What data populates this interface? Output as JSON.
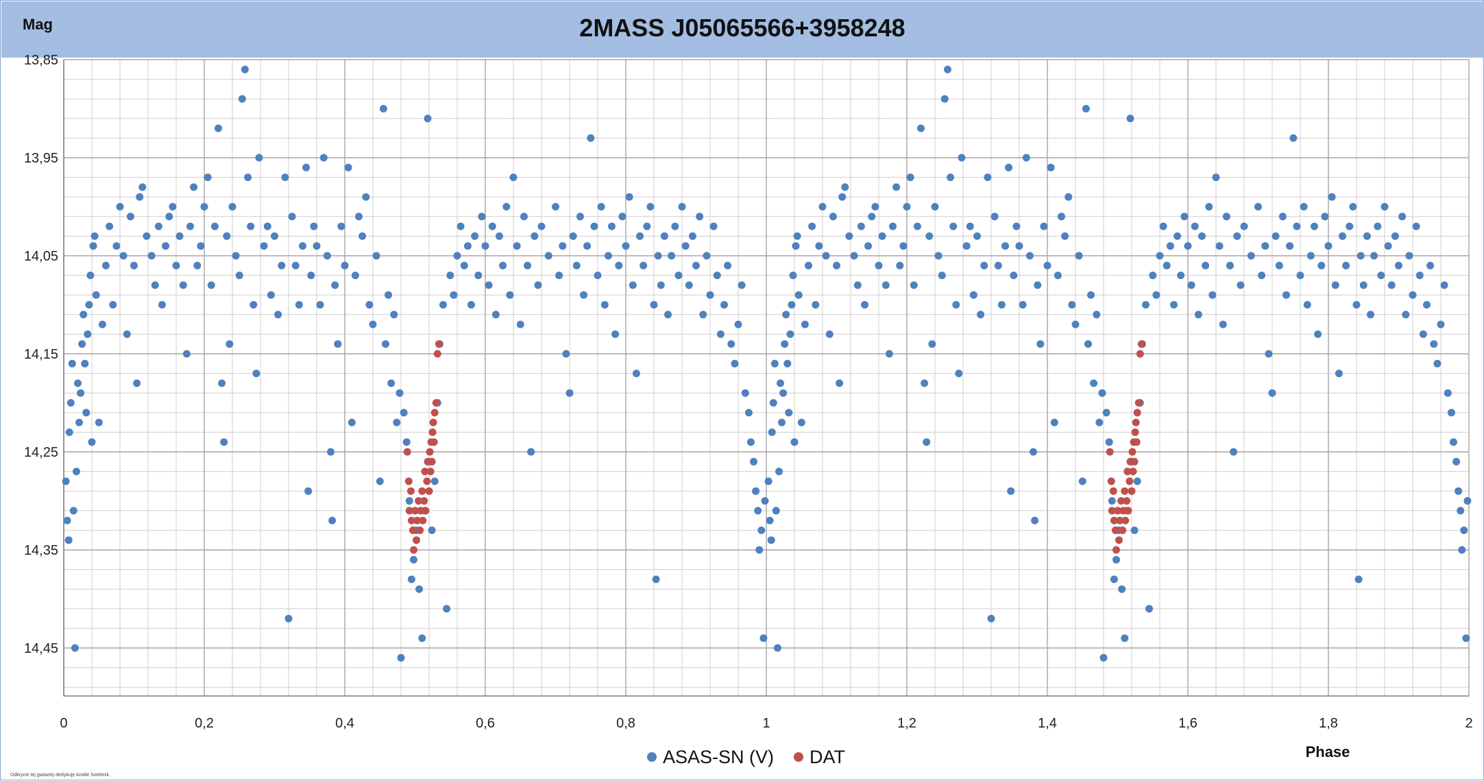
{
  "chart_data": {
    "type": "scatter",
    "title": "2MASS J05065566+3958248",
    "ylabel": "Mag",
    "xlabel": "Phase",
    "xlim": [
      0,
      2
    ],
    "ylim": [
      14.5,
      13.85
    ],
    "y_inverted": true,
    "x_ticks": [
      "0",
      "0,2",
      "0,4",
      "0,6",
      "0,8",
      "1",
      "1,2",
      "1,4",
      "1,6",
      "1,8",
      "2"
    ],
    "y_ticks": [
      "13,85",
      "13,95",
      "14,05",
      "14,15",
      "14,25",
      "14,35",
      "14,45"
    ],
    "grid": true,
    "legend_position": "bottom",
    "colors": {
      "band": "#a3bde3",
      "series1": "#4f81bd",
      "series2": "#c0504d",
      "grid": "#bfbfbf"
    },
    "series": [
      {
        "name": "ASAS-SN (V)",
        "color": "#4f81bd",
        "points": [
          [
            0.003,
            14.28
          ],
          [
            0.005,
            14.32
          ],
          [
            0.007,
            14.34
          ],
          [
            0.008,
            14.23
          ],
          [
            0.01,
            14.2
          ],
          [
            0.012,
            14.16
          ],
          [
            0.014,
            14.31
          ],
          [
            0.016,
            14.45
          ],
          [
            0.018,
            14.27
          ],
          [
            0.02,
            14.18
          ],
          [
            0.022,
            14.22
          ],
          [
            0.024,
            14.19
          ],
          [
            0.026,
            14.14
          ],
          [
            0.028,
            14.11
          ],
          [
            0.03,
            14.16
          ],
          [
            0.032,
            14.21
          ],
          [
            0.034,
            14.13
          ],
          [
            0.036,
            14.1
          ],
          [
            0.038,
            14.07
          ],
          [
            0.04,
            14.24
          ],
          [
            0.042,
            14.04
          ],
          [
            0.044,
            14.03
          ],
          [
            0.046,
            14.09
          ],
          [
            0.05,
            14.22
          ],
          [
            0.055,
            14.12
          ],
          [
            0.06,
            14.06
          ],
          [
            0.065,
            14.02
          ],
          [
            0.07,
            14.1
          ],
          [
            0.075,
            14.04
          ],
          [
            0.08,
            14.0
          ],
          [
            0.085,
            14.05
          ],
          [
            0.09,
            14.13
          ],
          [
            0.095,
            14.01
          ],
          [
            0.1,
            14.06
          ],
          [
            0.104,
            14.18
          ],
          [
            0.108,
            13.99
          ],
          [
            0.112,
            13.98
          ],
          [
            0.118,
            14.03
          ],
          [
            0.125,
            14.05
          ],
          [
            0.13,
            14.08
          ],
          [
            0.135,
            14.02
          ],
          [
            0.14,
            14.1
          ],
          [
            0.145,
            14.04
          ],
          [
            0.15,
            14.01
          ],
          [
            0.155,
            14.0
          ],
          [
            0.16,
            14.06
          ],
          [
            0.165,
            14.03
          ],
          [
            0.17,
            14.08
          ],
          [
            0.175,
            14.15
          ],
          [
            0.18,
            14.02
          ],
          [
            0.185,
            13.98
          ],
          [
            0.19,
            14.06
          ],
          [
            0.195,
            14.04
          ],
          [
            0.2,
            14.0
          ],
          [
            0.205,
            13.97
          ],
          [
            0.21,
            14.08
          ],
          [
            0.215,
            14.02
          ],
          [
            0.22,
            13.92
          ],
          [
            0.225,
            14.18
          ],
          [
            0.228,
            14.24
          ],
          [
            0.232,
            14.03
          ],
          [
            0.236,
            14.14
          ],
          [
            0.24,
            14.0
          ],
          [
            0.245,
            14.05
          ],
          [
            0.25,
            14.07
          ],
          [
            0.254,
            13.89
          ],
          [
            0.258,
            13.86
          ],
          [
            0.262,
            13.97
          ],
          [
            0.266,
            14.02
          ],
          [
            0.27,
            14.1
          ],
          [
            0.274,
            14.17
          ],
          [
            0.278,
            13.95
          ],
          [
            0.285,
            14.04
          ],
          [
            0.29,
            14.02
          ],
          [
            0.295,
            14.09
          ],
          [
            0.3,
            14.03
          ],
          [
            0.305,
            14.11
          ],
          [
            0.31,
            14.06
          ],
          [
            0.315,
            13.97
          ],
          [
            0.32,
            14.42
          ],
          [
            0.325,
            14.01
          ],
          [
            0.33,
            14.06
          ],
          [
            0.335,
            14.1
          ],
          [
            0.34,
            14.04
          ],
          [
            0.345,
            13.96
          ],
          [
            0.348,
            14.29
          ],
          [
            0.352,
            14.07
          ],
          [
            0.356,
            14.02
          ],
          [
            0.36,
            14.04
          ],
          [
            0.365,
            14.1
          ],
          [
            0.37,
            13.95
          ],
          [
            0.375,
            14.05
          ],
          [
            0.38,
            14.25
          ],
          [
            0.382,
            14.32
          ],
          [
            0.386,
            14.08
          ],
          [
            0.39,
            14.14
          ],
          [
            0.395,
            14.02
          ],
          [
            0.4,
            14.06
          ],
          [
            0.405,
            13.96
          ],
          [
            0.41,
            14.22
          ],
          [
            0.415,
            14.07
          ],
          [
            0.42,
            14.01
          ],
          [
            0.425,
            14.03
          ],
          [
            0.43,
            13.99
          ],
          [
            0.435,
            14.1
          ],
          [
            0.44,
            14.12
          ],
          [
            0.445,
            14.05
          ],
          [
            0.45,
            14.28
          ],
          [
            0.455,
            13.9
          ],
          [
            0.458,
            14.14
          ],
          [
            0.462,
            14.09
          ],
          [
            0.466,
            14.18
          ],
          [
            0.47,
            14.11
          ],
          [
            0.474,
            14.22
          ],
          [
            0.478,
            14.19
          ],
          [
            0.48,
            14.46
          ],
          [
            0.484,
            14.21
          ],
          [
            0.488,
            14.24
          ],
          [
            0.492,
            14.3
          ],
          [
            0.495,
            14.38
          ],
          [
            0.498,
            14.36
          ],
          [
            0.502,
            14.33
          ],
          [
            0.506,
            14.39
          ],
          [
            0.51,
            14.44
          ],
          [
            0.514,
            14.31
          ],
          [
            0.518,
            13.91
          ],
          [
            0.52,
            14.26
          ],
          [
            0.524,
            14.33
          ],
          [
            0.528,
            14.28
          ],
          [
            0.532,
            14.2
          ],
          [
            0.535,
            14.14
          ],
          [
            0.54,
            14.1
          ],
          [
            0.545,
            14.41
          ],
          [
            0.55,
            14.07
          ],
          [
            0.555,
            14.09
          ],
          [
            0.56,
            14.05
          ],
          [
            0.565,
            14.02
          ],
          [
            0.57,
            14.06
          ],
          [
            0.575,
            14.04
          ],
          [
            0.58,
            14.1
          ],
          [
            0.585,
            14.03
          ],
          [
            0.59,
            14.07
          ],
          [
            0.595,
            14.01
          ],
          [
            0.6,
            14.04
          ],
          [
            0.605,
            14.08
          ],
          [
            0.61,
            14.02
          ],
          [
            0.615,
            14.11
          ],
          [
            0.62,
            14.03
          ],
          [
            0.625,
            14.06
          ],
          [
            0.63,
            14.0
          ],
          [
            0.635,
            14.09
          ],
          [
            0.64,
            13.97
          ],
          [
            0.645,
            14.04
          ],
          [
            0.65,
            14.12
          ],
          [
            0.655,
            14.01
          ],
          [
            0.66,
            14.06
          ],
          [
            0.665,
            14.25
          ],
          [
            0.67,
            14.03
          ],
          [
            0.675,
            14.08
          ],
          [
            0.68,
            14.02
          ],
          [
            0.69,
            14.05
          ],
          [
            0.7,
            14.0
          ],
          [
            0.705,
            14.07
          ],
          [
            0.71,
            14.04
          ],
          [
            0.715,
            14.15
          ],
          [
            0.72,
            14.19
          ],
          [
            0.725,
            14.03
          ],
          [
            0.73,
            14.06
          ],
          [
            0.735,
            14.01
          ],
          [
            0.74,
            14.09
          ],
          [
            0.745,
            14.04
          ],
          [
            0.75,
            13.93
          ],
          [
            0.755,
            14.02
          ],
          [
            0.76,
            14.07
          ],
          [
            0.765,
            14.0
          ],
          [
            0.77,
            14.1
          ],
          [
            0.775,
            14.05
          ],
          [
            0.78,
            14.02
          ],
          [
            0.785,
            14.13
          ],
          [
            0.79,
            14.06
          ],
          [
            0.795,
            14.01
          ],
          [
            0.8,
            14.04
          ],
          [
            0.805,
            13.99
          ],
          [
            0.81,
            14.08
          ],
          [
            0.815,
            14.17
          ],
          [
            0.82,
            14.03
          ],
          [
            0.825,
            14.06
          ],
          [
            0.83,
            14.02
          ],
          [
            0.835,
            14.0
          ],
          [
            0.84,
            14.1
          ],
          [
            0.843,
            14.38
          ],
          [
            0.846,
            14.05
          ],
          [
            0.85,
            14.08
          ],
          [
            0.855,
            14.03
          ],
          [
            0.86,
            14.11
          ],
          [
            0.865,
            14.05
          ],
          [
            0.87,
            14.02
          ],
          [
            0.875,
            14.07
          ],
          [
            0.88,
            14.0
          ],
          [
            0.885,
            14.04
          ],
          [
            0.89,
            14.08
          ],
          [
            0.895,
            14.03
          ],
          [
            0.9,
            14.06
          ],
          [
            0.905,
            14.01
          ],
          [
            0.91,
            14.11
          ],
          [
            0.915,
            14.05
          ],
          [
            0.92,
            14.09
          ],
          [
            0.925,
            14.02
          ],
          [
            0.93,
            14.07
          ],
          [
            0.935,
            14.13
          ],
          [
            0.94,
            14.1
          ],
          [
            0.945,
            14.06
          ],
          [
            0.95,
            14.14
          ],
          [
            0.955,
            14.16
          ],
          [
            0.96,
            14.12
          ],
          [
            0.965,
            14.08
          ],
          [
            0.97,
            14.19
          ],
          [
            0.975,
            14.21
          ],
          [
            0.978,
            14.24
          ],
          [
            0.982,
            14.26
          ],
          [
            0.985,
            14.29
          ],
          [
            0.988,
            14.31
          ],
          [
            0.99,
            14.35
          ],
          [
            0.993,
            14.33
          ],
          [
            0.996,
            14.44
          ],
          [
            0.998,
            14.3
          ]
        ]
      },
      {
        "name": "DAT",
        "color": "#c0504d",
        "points": [
          [
            0.489,
            14.25
          ],
          [
            0.491,
            14.28
          ],
          [
            0.492,
            14.31
          ],
          [
            0.494,
            14.29
          ],
          [
            0.495,
            14.32
          ],
          [
            0.497,
            14.33
          ],
          [
            0.498,
            14.35
          ],
          [
            0.5,
            14.31
          ],
          [
            0.502,
            14.34
          ],
          [
            0.503,
            14.32
          ],
          [
            0.505,
            14.3
          ],
          [
            0.507,
            14.33
          ],
          [
            0.508,
            14.31
          ],
          [
            0.51,
            14.29
          ],
          [
            0.511,
            14.32
          ],
          [
            0.513,
            14.3
          ],
          [
            0.514,
            14.27
          ],
          [
            0.515,
            14.31
          ],
          [
            0.517,
            14.28
          ],
          [
            0.518,
            14.26
          ],
          [
            0.52,
            14.29
          ],
          [
            0.521,
            14.25
          ],
          [
            0.522,
            14.27
          ],
          [
            0.523,
            14.24
          ],
          [
            0.524,
            14.26
          ],
          [
            0.525,
            14.23
          ],
          [
            0.526,
            14.22
          ],
          [
            0.527,
            14.24
          ],
          [
            0.528,
            14.21
          ],
          [
            0.53,
            14.2
          ],
          [
            0.532,
            14.15
          ],
          [
            0.534,
            14.14
          ]
        ]
      }
    ]
  },
  "footnote": "Odkrycie tej gwiazdy dedykuję Anidie Sztebnik."
}
